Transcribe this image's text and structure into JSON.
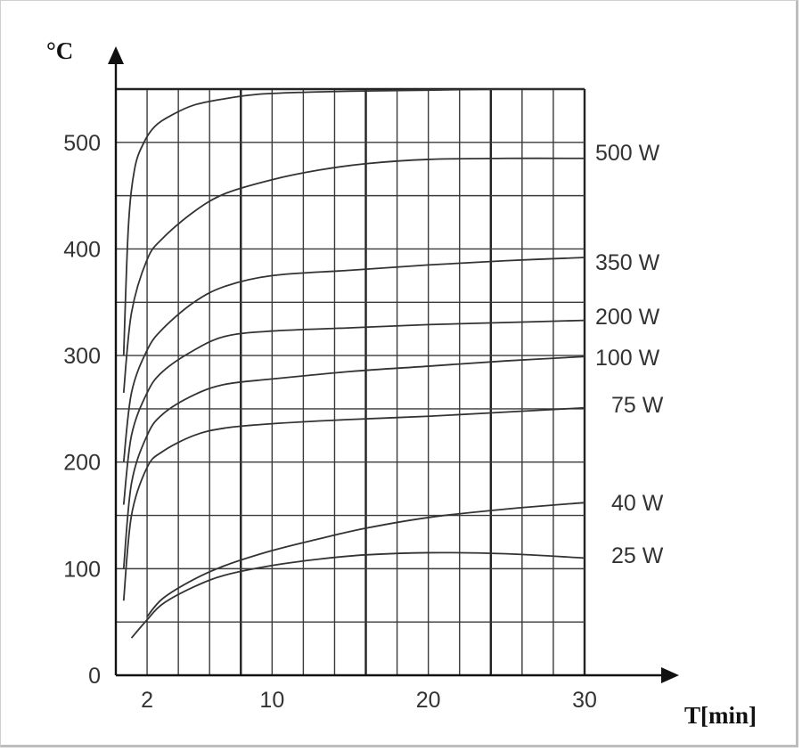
{
  "chart_data": {
    "type": "line",
    "ylabel": "°C",
    "xlabel": "T[min]",
    "xlim": [
      0,
      30
    ],
    "ylim": [
      0,
      550
    ],
    "x_ticks": [
      {
        "value": 2,
        "label": "2"
      },
      {
        "value": 10,
        "label": "10"
      },
      {
        "value": 20,
        "label": "20"
      },
      {
        "value": 30,
        "label": "30"
      }
    ],
    "y_ticks": [
      {
        "value": 0,
        "label": "0"
      },
      {
        "value": 100,
        "label": "100"
      },
      {
        "value": 200,
        "label": "200"
      },
      {
        "value": 300,
        "label": "300"
      },
      {
        "value": 400,
        "label": "400"
      },
      {
        "value": 500,
        "label": "500"
      }
    ],
    "grid": true,
    "series": [
      {
        "name": "",
        "x": [
          0.5,
          0.8,
          1.2,
          1.8,
          2.5,
          3.5,
          5,
          7,
          9,
          12,
          15,
          20,
          25,
          30
        ],
        "y": [
          300,
          420,
          475,
          500,
          515,
          525,
          535,
          541,
          545,
          547,
          548,
          549,
          550,
          550
        ]
      },
      {
        "name": "500 W",
        "x": [
          0.5,
          1,
          2,
          3,
          5,
          7,
          10,
          13,
          16,
          20,
          25,
          30
        ],
        "y": [
          265,
          340,
          390,
          410,
          435,
          452,
          465,
          474,
          480,
          484,
          485,
          485
        ]
      },
      {
        "name": "350 W",
        "x": [
          0.5,
          1,
          2,
          3,
          5,
          7,
          10,
          15,
          20,
          25,
          30
        ],
        "y": [
          200,
          265,
          305,
          325,
          350,
          365,
          375,
          380,
          385,
          389,
          392
        ]
      },
      {
        "name": "200 W",
        "x": [
          0.5,
          1,
          2,
          3,
          5,
          7,
          10,
          15,
          20,
          25,
          30
        ],
        "y": [
          160,
          225,
          265,
          285,
          305,
          318,
          323,
          326,
          329,
          331,
          333
        ]
      },
      {
        "name": "100 W",
        "x": [
          0.5,
          1,
          2,
          3,
          5,
          7,
          10,
          15,
          20,
          25,
          30
        ],
        "y": [
          100,
          180,
          225,
          245,
          263,
          273,
          278,
          285,
          290,
          295,
          299
        ]
      },
      {
        "name": "75 W",
        "x": [
          0.5,
          1,
          2,
          3,
          5,
          7,
          10,
          15,
          20,
          25,
          30
        ],
        "y": [
          70,
          150,
          195,
          210,
          225,
          232,
          236,
          240,
          243,
          247,
          251
        ]
      },
      {
        "name": "40 W",
        "x": [
          2,
          3,
          5,
          7,
          10,
          13,
          16,
          20,
          25,
          30
        ],
        "y": [
          55,
          72,
          90,
          103,
          117,
          128,
          138,
          148,
          156,
          162
        ]
      },
      {
        "name": "25 W",
        "x": [
          1,
          2,
          3,
          5,
          7,
          10,
          13,
          16,
          20,
          25,
          30
        ],
        "y": [
          35,
          52,
          67,
          83,
          94,
          103,
          109,
          113,
          115,
          114,
          110
        ]
      }
    ]
  }
}
